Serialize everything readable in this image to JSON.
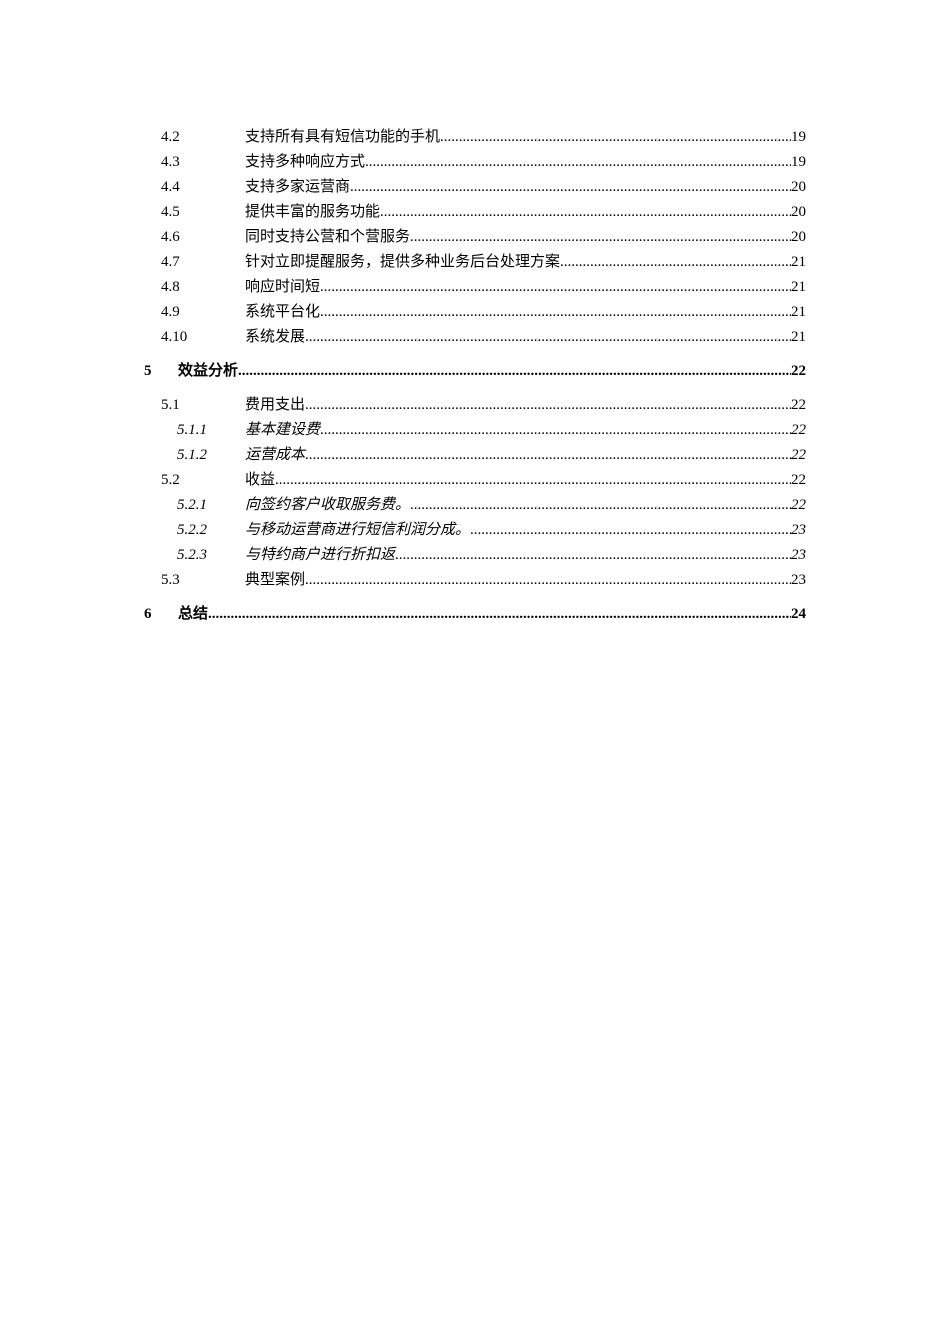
{
  "toc": [
    {
      "level": 2,
      "number": "4.2",
      "title": "支持所有具有短信功能的手机",
      "page": "19"
    },
    {
      "level": 2,
      "number": "4.3",
      "title": "支持多种响应方式",
      "page": "19"
    },
    {
      "level": 2,
      "number": "4.4",
      "title": "支持多家运营商",
      "page": "20"
    },
    {
      "level": 2,
      "number": "4.5",
      "title": "提供丰富的服务功能",
      "page": "20"
    },
    {
      "level": 2,
      "number": "4.6",
      "title": "同时支持公营和个营服务",
      "page": "20"
    },
    {
      "level": 2,
      "number": "4.7",
      "title": "针对立即提醒服务，提供多种业务后台处理方案",
      "page": "21"
    },
    {
      "level": 2,
      "number": "4.8",
      "title": "响应时间短",
      "page": "21"
    },
    {
      "level": 2,
      "number": "4.9",
      "title": "系统平台化",
      "page": "21"
    },
    {
      "level": 2,
      "number": "4.10",
      "title": "系统发展",
      "page": "21"
    },
    {
      "level": 1,
      "number": "5",
      "title": "效益分析",
      "page": "22"
    },
    {
      "level": 2,
      "number": "5.1",
      "title": "费用支出",
      "page": "22"
    },
    {
      "level": 3,
      "number": "5.1.1",
      "title": "基本建设费",
      "page": "22"
    },
    {
      "level": 3,
      "number": "5.1.2",
      "title": "运营成本",
      "page": "22"
    },
    {
      "level": 2,
      "number": "5.2",
      "title": "收益",
      "page": "22"
    },
    {
      "level": 3,
      "number": "5.2.1",
      "title": "向签约客户收取服务费。",
      "page": "22"
    },
    {
      "level": 3,
      "number": "5.2.2",
      "title": "与移动运营商进行短信利润分成。",
      "page": "23"
    },
    {
      "level": 3,
      "number": "5.2.3",
      "title": "与特约商户进行折扣返",
      "page": "23"
    },
    {
      "level": 2,
      "number": "5.3",
      "title": "典型案例",
      "page": "23"
    },
    {
      "level": 1,
      "number": "6",
      "title": "总结",
      "page": "24"
    }
  ]
}
